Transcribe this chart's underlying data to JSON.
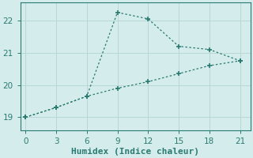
{
  "xlabel": "Humidex (Indice chaleur)",
  "ylabel": "",
  "background_color": "#d4ecec",
  "grid_color": "#b8d8d8",
  "line_color": "#2a7a70",
  "line1_x": [
    0,
    3,
    6,
    9,
    12,
    15,
    18,
    21
  ],
  "line1_y": [
    19.0,
    19.3,
    19.65,
    22.25,
    22.05,
    21.2,
    21.1,
    20.75
  ],
  "line2_x": [
    0,
    3,
    6,
    9,
    12,
    15,
    18,
    21
  ],
  "line2_y": [
    19.0,
    19.3,
    19.65,
    19.9,
    20.1,
    20.35,
    20.6,
    20.75
  ],
  "xlim": [
    -0.5,
    22
  ],
  "ylim": [
    18.6,
    22.55
  ],
  "xticks": [
    0,
    3,
    6,
    9,
    12,
    15,
    18,
    21
  ],
  "yticks": [
    19,
    20,
    21,
    22
  ],
  "marker": "+",
  "markersize": 5,
  "markeredgewidth": 1.2,
  "linewidth": 0.9,
  "tick_labelsize": 7.5,
  "xlabel_fontsize": 8
}
